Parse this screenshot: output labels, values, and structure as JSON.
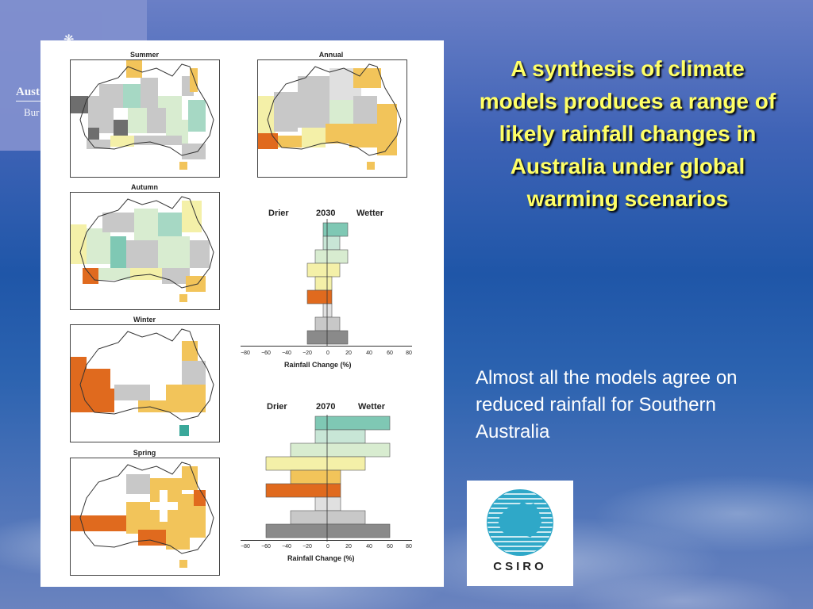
{
  "logo": {
    "line1": "Aust",
    "line2": "Bur"
  },
  "figure": {
    "maps": [
      {
        "title": "Summer"
      },
      {
        "title": "Annual"
      },
      {
        "title": "Autumn"
      },
      {
        "title": "Winter"
      },
      {
        "title": "Spring"
      }
    ],
    "hist_2030": {
      "drier": "Drier",
      "year": "2030",
      "wetter": "Wetter",
      "ticks": [
        "−80",
        "−60",
        "−40",
        "−20",
        "0",
        "20",
        "40",
        "60",
        "80"
      ],
      "axis_title": "Rainfall Change (%)"
    },
    "hist_2070": {
      "drier": "Drier",
      "year": "2070",
      "wetter": "Wetter",
      "ticks": [
        "−80",
        "−60",
        "−40",
        "−20",
        "0",
        "20",
        "40",
        "60",
        "80"
      ],
      "axis_title": "Rainfall Change (%)"
    }
  },
  "title": "A synthesis of climate models produces a range of likely rainfall changes in Australia under global warming scenarios",
  "caption": "Almost all the models agree on reduced rainfall for Southern Australia",
  "csiro": {
    "label": "CSIRO"
  },
  "colors": {
    "title": "#ffff66",
    "dark_orange": "#e06a1e",
    "light_orange": "#f2c45a",
    "pale_yellow": "#f4f0a8",
    "grey": "#c8c8c8",
    "dark_grey": "#6e6e6e",
    "pale_green": "#d8ecd0",
    "teal": "#7fc8b4"
  }
}
